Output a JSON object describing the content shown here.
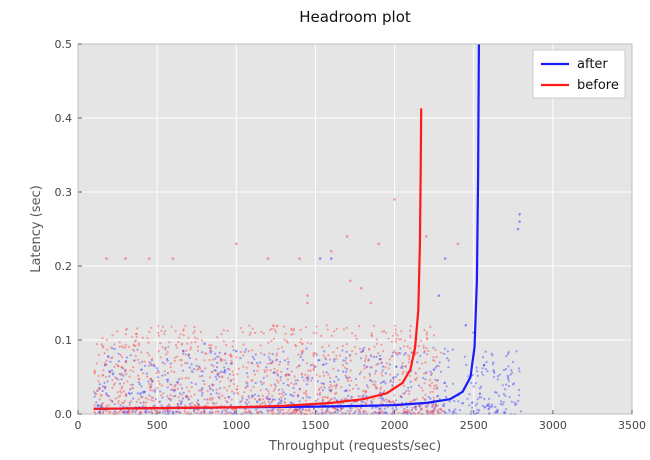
{
  "chart_data": {
    "type": "line",
    "title": "Headroom plot",
    "xlabel": "Throughput (requests/sec)",
    "ylabel": "Latency (sec)",
    "xlim": [
      0,
      3500
    ],
    "ylim": [
      0,
      0.5
    ],
    "xticks": [
      0,
      500,
      1000,
      1500,
      2000,
      2500,
      3000,
      3500
    ],
    "yticks": [
      0.0,
      0.1,
      0.2,
      0.3,
      0.4,
      0.5
    ],
    "xtick_labels": [
      "0",
      "500",
      "1000",
      "1500",
      "2000",
      "2500",
      "3000",
      "3500"
    ],
    "ytick_labels": [
      "0.0",
      "0.1",
      "0.2",
      "0.3",
      "0.4",
      "0.5"
    ],
    "grid": true,
    "background": "#e5e5e5",
    "legend_position": "top-right",
    "series": [
      {
        "name": "after",
        "color": "#1a1aff",
        "x": [
          100,
          500,
          1000,
          1500,
          1800,
          2000,
          2200,
          2350,
          2430,
          2480,
          2505,
          2520,
          2528,
          2533
        ],
        "y": [
          0.007,
          0.008,
          0.009,
          0.01,
          0.011,
          0.012,
          0.015,
          0.02,
          0.03,
          0.05,
          0.09,
          0.18,
          0.32,
          0.5
        ]
      },
      {
        "name": "before",
        "color": "#ff1a1a",
        "x": [
          100,
          500,
          1000,
          1300,
          1600,
          1800,
          1950,
          2050,
          2100,
          2130,
          2150,
          2160,
          2165,
          2168
        ],
        "y": [
          0.007,
          0.008,
          0.009,
          0.011,
          0.015,
          0.02,
          0.028,
          0.042,
          0.06,
          0.09,
          0.14,
          0.23,
          0.33,
          0.413
        ]
      }
    ],
    "scatter": [
      {
        "series": "after",
        "color": "#3a3aff",
        "x_range": [
          100,
          2800
        ],
        "y_range": [
          0.0,
          0.09
        ],
        "outliers": [
          [
            2280,
            0.16
          ],
          [
            2320,
            0.21
          ],
          [
            2790,
            0.27
          ],
          [
            2790,
            0.26
          ],
          [
            2780,
            0.25
          ],
          [
            1530,
            0.21
          ],
          [
            1600,
            0.21
          ],
          [
            700,
            0.08
          ],
          [
            800,
            0.095
          ],
          [
            1000,
            0.085
          ],
          [
            2450,
            0.12
          ],
          [
            2500,
            0.11
          ]
        ]
      },
      {
        "series": "before",
        "color": "#ff4040",
        "x_range": [
          100,
          2300
        ],
        "y_range": [
          0.0,
          0.12
        ],
        "outliers": [
          [
            180,
            0.21
          ],
          [
            300,
            0.21
          ],
          [
            450,
            0.21
          ],
          [
            600,
            0.21
          ],
          [
            1000,
            0.23
          ],
          [
            1200,
            0.21
          ],
          [
            1400,
            0.21
          ],
          [
            1600,
            0.22
          ],
          [
            1700,
            0.24
          ],
          [
            1900,
            0.23
          ],
          [
            2000,
            0.29
          ],
          [
            2200,
            0.24
          ],
          [
            2400,
            0.23
          ],
          [
            1450,
            0.15
          ],
          [
            1450,
            0.16
          ],
          [
            1720,
            0.18
          ],
          [
            1790,
            0.17
          ],
          [
            1850,
            0.15
          ]
        ]
      }
    ]
  }
}
